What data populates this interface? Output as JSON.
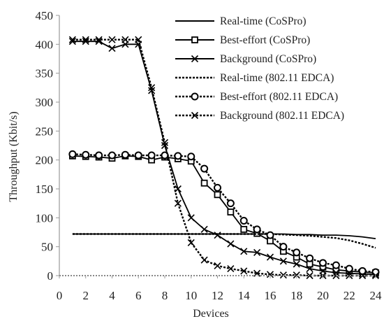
{
  "chart_data": {
    "type": "line",
    "title": "",
    "xlabel": "Devices",
    "ylabel": "Throughput (Kbit/s)",
    "xlim": [
      0,
      24
    ],
    "ylim": [
      0,
      450
    ],
    "x_ticks": [
      "0",
      "2",
      "4",
      "6",
      "8",
      "10",
      "12",
      "14",
      "16",
      "18",
      "20",
      "22",
      "24"
    ],
    "y_ticks": [
      "0",
      "50",
      "100",
      "150",
      "200",
      "250",
      "300",
      "350",
      "400",
      "450"
    ],
    "grid": false,
    "legend_position": "top-right",
    "x": [
      1,
      2,
      3,
      4,
      5,
      6,
      7,
      8,
      9,
      10,
      11,
      12,
      13,
      14,
      15,
      16,
      17,
      18,
      19,
      20,
      21,
      22,
      23,
      24
    ],
    "series": [
      {
        "name": "Real-time (CoSPro)",
        "line": "solid",
        "marker": "none",
        "color": "#000000",
        "values": [
          72,
          72,
          72,
          72,
          72,
          72,
          72,
          72,
          72,
          72,
          72,
          72,
          72,
          72,
          72,
          72,
          72,
          71,
          71,
          70,
          70,
          69,
          67,
          64
        ]
      },
      {
        "name": "Best-effort (CoSPro)",
        "line": "solid",
        "marker": "square",
        "color": "#000000",
        "values": [
          207,
          206,
          205,
          203,
          207,
          206,
          200,
          205,
          202,
          198,
          160,
          140,
          110,
          80,
          73,
          60,
          42,
          32,
          20,
          15,
          10,
          8,
          6,
          5
        ]
      },
      {
        "name": "Background (CoSPro)",
        "line": "solid",
        "marker": "x",
        "color": "#000000",
        "values": [
          405,
          405,
          405,
          393,
          400,
          400,
          320,
          225,
          150,
          100,
          80,
          70,
          55,
          42,
          40,
          32,
          25,
          20,
          12,
          8,
          5,
          4,
          3,
          2
        ]
      },
      {
        "name": "Real-time (802.11 EDCA)",
        "line": "dashed",
        "marker": "none",
        "color": "#000000",
        "values": [
          72,
          72,
          72,
          72,
          72,
          72,
          72,
          72,
          72,
          72,
          72,
          72,
          72,
          72,
          72,
          72,
          71,
          70,
          69,
          67,
          65,
          61,
          55,
          48
        ]
      },
      {
        "name": "Best-effort (802.11 EDCA)",
        "line": "dashed",
        "marker": "circle",
        "color": "#000000",
        "values": [
          210,
          209,
          208,
          208,
          209,
          208,
          208,
          208,
          207,
          206,
          185,
          152,
          125,
          95,
          80,
          70,
          50,
          40,
          30,
          22,
          18,
          12,
          8,
          6
        ]
      },
      {
        "name": "Background (802.11 EDCA)",
        "line": "dashed",
        "marker": "x",
        "color": "#000000",
        "values": [
          408,
          408,
          408,
          408,
          408,
          408,
          325,
          230,
          125,
          57,
          27,
          17,
          12,
          8,
          4,
          2,
          1,
          1,
          0,
          0,
          0,
          0,
          0,
          0
        ]
      }
    ]
  }
}
